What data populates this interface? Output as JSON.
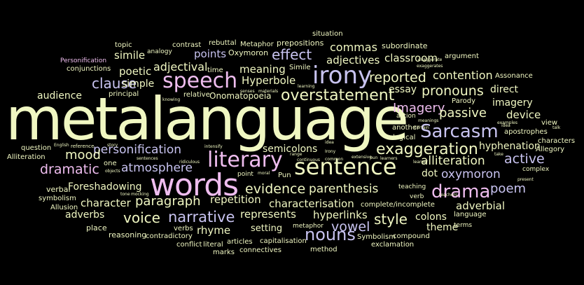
{
  "palette": {
    "background": "#000000",
    "cream": "#F0F7C2",
    "lavender": "#C8C3F0",
    "pink": "#EFBDEF",
    "light_lilac": "#E0D6F7",
    "pale_yellow": "#F6F7D8"
  },
  "words": [
    {
      "id": "metalanguage",
      "text": "metalanguage"
    },
    {
      "id": "speech",
      "text": "speech"
    },
    {
      "id": "words",
      "text": "words"
    },
    {
      "id": "sentence",
      "text": "sentence"
    },
    {
      "id": "literary",
      "text": "literary"
    },
    {
      "id": "irony",
      "text": "irony"
    },
    {
      "id": "sarcasm",
      "text": "Sarcasm"
    },
    {
      "id": "drama",
      "text": "drama"
    },
    {
      "id": "exaggeration",
      "text": "exaggeration"
    },
    {
      "id": "overstatement",
      "text": "overstatement"
    },
    {
      "id": "personification",
      "text": "personification"
    },
    {
      "id": "pronouns",
      "text": "pronouns"
    },
    {
      "id": "reported",
      "text": "reported"
    },
    {
      "id": "narrative",
      "text": "narrative"
    },
    {
      "id": "atmosphere",
      "text": "atmosphere"
    },
    {
      "id": "paragraph",
      "text": "paragraph"
    },
    {
      "id": "evidence",
      "text": "evidence"
    },
    {
      "id": "alliteration",
      "text": "alliteration"
    },
    {
      "id": "oxymoron_l",
      "text": "oxymoron"
    },
    {
      "id": "imagery_cap",
      "text": "Imagery"
    },
    {
      "id": "passive",
      "text": "passive"
    },
    {
      "id": "parenthesis",
      "text": "parenthesis"
    },
    {
      "id": "dramatic",
      "text": "dramatic"
    },
    {
      "id": "voice",
      "text": "voice"
    },
    {
      "id": "nouns",
      "text": "nouns"
    },
    {
      "id": "style",
      "text": "style"
    },
    {
      "id": "effect",
      "text": "effect"
    },
    {
      "id": "mood",
      "text": "mood"
    },
    {
      "id": "clause",
      "text": "clause"
    },
    {
      "id": "active",
      "text": "active"
    },
    {
      "id": "poem",
      "text": "poem"
    },
    {
      "id": "vowel",
      "text": "vowel"
    },
    {
      "id": "characterisation",
      "text": "characterisation"
    },
    {
      "id": "commas",
      "text": "commas"
    },
    {
      "id": "adjectives",
      "text": "adjectives"
    },
    {
      "id": "classroom",
      "text": "classroom"
    },
    {
      "id": "contention",
      "text": "contention"
    },
    {
      "id": "adjectival",
      "text": "adjectival"
    },
    {
      "id": "simile",
      "text": "simile"
    },
    {
      "id": "poetic",
      "text": "poetic"
    },
    {
      "id": "simple",
      "text": "simple"
    },
    {
      "id": "points",
      "text": "points"
    },
    {
      "id": "meaning",
      "text": "meaning"
    },
    {
      "id": "hyperbole",
      "text": "Hyperbole"
    },
    {
      "id": "essay",
      "text": "essay"
    },
    {
      "id": "direct",
      "text": "direct"
    },
    {
      "id": "imagery",
      "text": "imagery"
    },
    {
      "id": "device",
      "text": "device"
    },
    {
      "id": "hyphenation",
      "text": "hyphenation"
    },
    {
      "id": "semicolons",
      "text": "semicolons"
    },
    {
      "id": "dot",
      "text": "dot"
    },
    {
      "id": "foreshadowing",
      "text": "Foreshadowing"
    },
    {
      "id": "repetition",
      "text": "repetition"
    },
    {
      "id": "represents",
      "text": "represents"
    },
    {
      "id": "hyperlinks",
      "text": "hyperlinks"
    },
    {
      "id": "adverbial",
      "text": "adverbial"
    },
    {
      "id": "colons",
      "text": "colons"
    },
    {
      "id": "theme",
      "text": "theme"
    },
    {
      "id": "character",
      "text": "character"
    },
    {
      "id": "adverbs",
      "text": "adverbs"
    },
    {
      "id": "rhyme",
      "text": "rhyme"
    },
    {
      "id": "setting",
      "text": "setting"
    },
    {
      "id": "audience",
      "text": "audience"
    },
    {
      "id": "onomatopoeia",
      "text": "Onomatopoeia"
    },
    {
      "id": "metaphor_cap",
      "text": "Metaphor"
    },
    {
      "id": "prepositions",
      "text": "prepositions"
    },
    {
      "id": "situation",
      "text": "situation"
    },
    {
      "id": "subordinate",
      "text": "subordinate"
    },
    {
      "id": "oxymoron_cap",
      "text": "Oxymoron"
    },
    {
      "id": "rebuttal",
      "text": "rebuttal"
    },
    {
      "id": "contrast",
      "text": "contrast"
    },
    {
      "id": "analogy",
      "text": "analogy"
    },
    {
      "id": "topic",
      "text": "topic"
    },
    {
      "id": "personification_cap",
      "text": "Personification"
    },
    {
      "id": "conjunctions",
      "text": "conjunctions"
    },
    {
      "id": "argument",
      "text": "argument"
    },
    {
      "id": "parody",
      "text": "Parody"
    },
    {
      "id": "assonance",
      "text": "Assonance"
    },
    {
      "id": "simile_cap",
      "text": "Simile"
    },
    {
      "id": "time",
      "text": "time"
    },
    {
      "id": "principal",
      "text": "principal"
    },
    {
      "id": "relative",
      "text": "relative"
    },
    {
      "id": "question",
      "text": "question"
    },
    {
      "id": "alliteration_cap",
      "text": "Alliteration"
    },
    {
      "id": "one",
      "text": "one"
    },
    {
      "id": "verbal",
      "text": "verbal"
    },
    {
      "id": "symbolism",
      "text": "symbolism"
    },
    {
      "id": "allusion",
      "text": "Allusion"
    },
    {
      "id": "place",
      "text": "place"
    },
    {
      "id": "reasoning",
      "text": "reasoning"
    },
    {
      "id": "verbs",
      "text": "verbs"
    },
    {
      "id": "contradictory",
      "text": "contradictory"
    },
    {
      "id": "conflict",
      "text": "conflict"
    },
    {
      "id": "literal",
      "text": "literal"
    },
    {
      "id": "marks",
      "text": "marks"
    },
    {
      "id": "articles",
      "text": "articles"
    },
    {
      "id": "connectives",
      "text": "connectives"
    },
    {
      "id": "capitalisation",
      "text": "capitalisation"
    },
    {
      "id": "metaphor",
      "text": "metaphor"
    },
    {
      "id": "method",
      "text": "method"
    },
    {
      "id": "complete_incomplete",
      "text": "complete/incomplete"
    },
    {
      "id": "symbolism_cap",
      "text": "Symbolism"
    },
    {
      "id": "compound",
      "text": "compound"
    },
    {
      "id": "exclamation",
      "text": "exclamation"
    },
    {
      "id": "language",
      "text": "language"
    },
    {
      "id": "terms",
      "text": "terms"
    },
    {
      "id": "teaching",
      "text": "teaching"
    },
    {
      "id": "verb",
      "text": "verb"
    },
    {
      "id": "point",
      "text": "point"
    },
    {
      "id": "pun",
      "text": "Pun"
    },
    {
      "id": "action",
      "text": "action"
    },
    {
      "id": "another",
      "text": "another"
    },
    {
      "id": "logical",
      "text": "logical"
    },
    {
      "id": "apostrophes",
      "text": "apostrophes"
    },
    {
      "id": "view",
      "text": "view"
    },
    {
      "id": "characters",
      "text": "characters"
    },
    {
      "id": "allegory",
      "text": "Allegory"
    },
    {
      "id": "complex",
      "text": "complex"
    },
    {
      "id": "present",
      "text": "present"
    },
    {
      "id": "english",
      "text": "English"
    },
    {
      "id": "reference",
      "text": "reference"
    },
    {
      "id": "story",
      "text": "story"
    },
    {
      "id": "sentences",
      "text": "sentences"
    },
    {
      "id": "ridiculous",
      "text": "ridiculous"
    },
    {
      "id": "intensify",
      "text": "intensify"
    },
    {
      "id": "objects",
      "text": "objects"
    },
    {
      "id": "tone",
      "text": "tone"
    },
    {
      "id": "mocking",
      "text": "mocking"
    },
    {
      "id": "moral",
      "text": "moral"
    },
    {
      "id": "range",
      "text": "range"
    },
    {
      "id": "continuous",
      "text": "continuous"
    },
    {
      "id": "common",
      "text": "common"
    },
    {
      "id": "extensive",
      "text": "extensive"
    },
    {
      "id": "pun_lower",
      "text": "pun"
    },
    {
      "id": "learners",
      "text": "learners"
    },
    {
      "id": "learner",
      "text": "learner"
    },
    {
      "id": "teachers",
      "text": "teachers"
    },
    {
      "id": "certain",
      "text": "Certain"
    },
    {
      "id": "meanings",
      "text": "meanings"
    },
    {
      "id": "examples",
      "text": "examples"
    },
    {
      "id": "talk",
      "text": "talk"
    },
    {
      "id": "take",
      "text": "take"
    },
    {
      "id": "idea",
      "text": "idea"
    },
    {
      "id": "senses",
      "text": "senses"
    },
    {
      "id": "materials",
      "text": "materials"
    },
    {
      "id": "knowing",
      "text": "knowing"
    },
    {
      "id": "learning",
      "text": "learning"
    },
    {
      "id": "exaggerates",
      "text": "exaggerates"
    },
    {
      "id": "exaggerate",
      "text": "exaggerate"
    },
    {
      "id": "irony_small",
      "text": "Irony"
    },
    {
      "id": "idea_small",
      "text": "idea"
    }
  ]
}
